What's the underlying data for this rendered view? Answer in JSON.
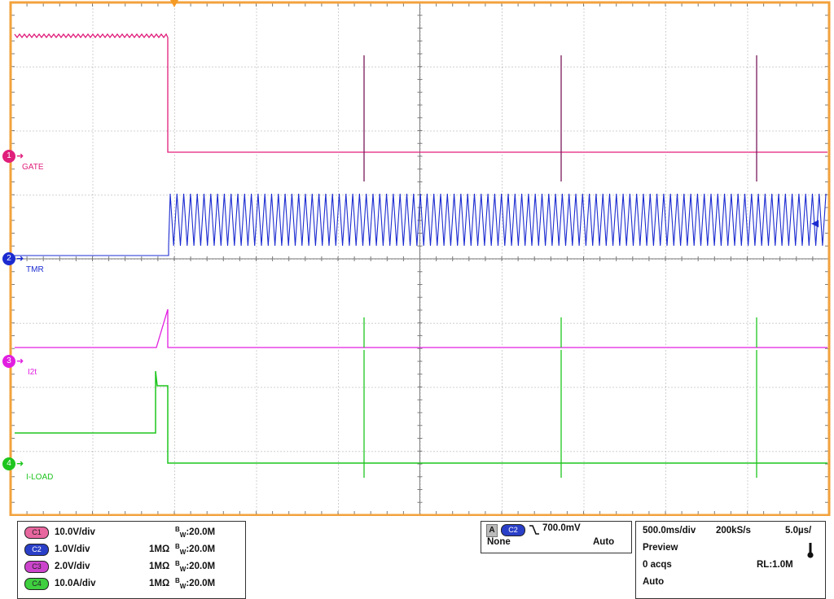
{
  "channels": [
    {
      "id": "1",
      "name": "GATE",
      "color": "#e01e7b",
      "label": "10.0V/div",
      "badge": "C1",
      "impedance": "",
      "bw_prefix": "B",
      "bw_sub": "W",
      "bw_value": ":20.0M"
    },
    {
      "id": "2",
      "name": "TMR",
      "color": "#1b2bd0",
      "label": "1.0V/div",
      "badge": "C2",
      "impedance": "1MΩ",
      "bw_prefix": "B",
      "bw_sub": "W",
      "bw_value": ":20.0M"
    },
    {
      "id": "3",
      "name": "I2t",
      "color": "#e11ee0",
      "label": "2.0V/div",
      "badge": "C3",
      "impedance": "1MΩ",
      "bw_prefix": "B",
      "bw_sub": "W",
      "bw_value": ":20.0M"
    },
    {
      "id": "4",
      "name": "I-LOAD",
      "color": "#1ec51e",
      "label": "10.0A/div",
      "badge": "C4",
      "impedance": "1MΩ",
      "bw_prefix": "B",
      "bw_sub": "W",
      "bw_value": ":20.0M"
    }
  ],
  "trigger": {
    "mode_letter": "A",
    "source_badge": "C2",
    "slope_icon": "falling-edge-icon",
    "level": "700.0mV",
    "coupling": "None",
    "mode": "Auto"
  },
  "timebase": {
    "time_div": "500.0ms/div",
    "sample_rate": "200kS/s",
    "sample_interval": "5.0µs/",
    "state": "Preview",
    "acqs": "0 acqs",
    "record_length": "RL:1.0M",
    "trigger_mode": "Auto",
    "thermometer_icon": "thermometer-icon"
  },
  "colors": {
    "grid_border": "#f2a23c",
    "grid_line": "#7a7a7a",
    "trigger_marker": "#f59a23"
  }
}
